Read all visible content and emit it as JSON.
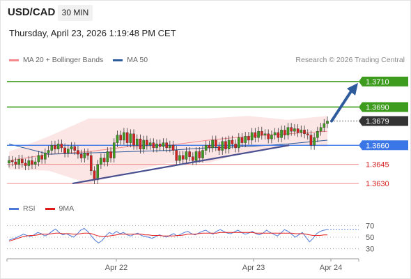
{
  "header": {
    "symbol": "USD/CAD",
    "timeframe": "30 MIN",
    "datetime": "Thursday, April 23, 2026 1:19:48 PM CET"
  },
  "legend_main": {
    "items": [
      {
        "label": "MA 20 + Bollinger Bands",
        "color": "#f4888a"
      },
      {
        "label": "MA 50",
        "color": "#2e5b9c"
      }
    ],
    "credit": "Research © 2026 Trading Central"
  },
  "legend_rsi": {
    "items": [
      {
        "label": "RSI",
        "color": "#4d79d6"
      },
      {
        "label": "9MA",
        "color": "#e11a1a"
      }
    ]
  },
  "colors": {
    "resistance": "#3d9c1e",
    "pivot": "#3b76e6",
    "support": "#f08a8a",
    "support_text": "#d62020",
    "last_price": "#333333",
    "arrow": "#2e5b9c",
    "trendline": "#4a4f8f",
    "bull": "#3d9c1e",
    "bear": "#d62020"
  },
  "chart_data": {
    "type": "candlestick",
    "x_labels": [
      "Apr 22",
      "Apr 23",
      "Apr 24"
    ],
    "ylim": [
      1.3618,
      1.3722
    ],
    "levels": [
      {
        "value": 1.371,
        "label": "1.3710",
        "kind": "resistance"
      },
      {
        "value": 1.369,
        "label": "1.3690",
        "kind": "resistance"
      },
      {
        "value": 1.3679,
        "label": "1.3679",
        "kind": "last"
      },
      {
        "value": 1.366,
        "label": "1.3660",
        "kind": "pivot"
      },
      {
        "value": 1.3645,
        "label": "1.3645",
        "kind": "support"
      },
      {
        "value": 1.363,
        "label": "1.3630",
        "kind": "support"
      }
    ],
    "candles_close": [
      1.3648,
      1.3647,
      1.3645,
      1.3649,
      1.3646,
      1.3644,
      1.3648,
      1.3645,
      1.3647,
      1.3652,
      1.3649,
      1.3654,
      1.3656,
      1.366,
      1.3657,
      1.3661,
      1.3658,
      1.3654,
      1.3657,
      1.3659,
      1.3656,
      1.3653,
      1.365,
      1.3654,
      1.3652,
      1.364,
      1.3633,
      1.3645,
      1.365,
      1.3647,
      1.3655,
      1.365,
      1.3662,
      1.3668,
      1.3664,
      1.367,
      1.3662,
      1.3669,
      1.366,
      1.3665,
      1.3657,
      1.3664,
      1.366,
      1.3662,
      1.3658,
      1.3661,
      1.3659,
      1.3662,
      1.3658,
      1.366,
      1.3656,
      1.3648,
      1.3652,
      1.3649,
      1.3655,
      1.3651,
      1.3648,
      1.3655,
      1.365,
      1.3656,
      1.366,
      1.3658,
      1.3664,
      1.3659,
      1.3656,
      1.3663,
      1.3657,
      1.3664,
      1.3661,
      1.3658,
      1.3666,
      1.3662,
      1.3667,
      1.3664,
      1.367,
      1.3666,
      1.3671,
      1.3668,
      1.3669,
      1.3665,
      1.3668,
      1.367,
      1.3666,
      1.3672,
      1.3668,
      1.3674,
      1.3671,
      1.3673,
      1.367,
      1.3672,
      1.3669,
      1.3668,
      1.366,
      1.3666,
      1.3671,
      1.3674,
      1.3677,
      1.3679
    ],
    "ma20_upper": [
      1.3655,
      1.3667,
      1.3681,
      1.3681,
      1.3681,
      1.3681,
      1.3683,
      1.368,
      1.3683
    ],
    "ma20_lower": [
      1.3641,
      1.364,
      1.363,
      1.3639,
      1.3646,
      1.3646,
      1.3655,
      1.366,
      1.3659
    ],
    "ma20": [
      1.3648,
      1.3653,
      1.3655,
      1.3659,
      1.366,
      1.3664,
      1.3667,
      1.3669,
      1.3671
    ],
    "ma50": [
      1.3661,
      1.3653,
      1.3654,
      1.3655,
      1.3656,
      1.3658,
      1.3659,
      1.3661,
      1.3664
    ],
    "trendline": [
      [
        1.363,
        0
      ],
      [
        1.366,
        0.88
      ]
    ],
    "arrow_target": 1.371,
    "rsi": {
      "ylim": [
        20,
        80
      ],
      "levels": [
        70,
        50,
        30
      ],
      "values": [
        45,
        47,
        49,
        52,
        55,
        53,
        51,
        54,
        58,
        56,
        52,
        55,
        60,
        64,
        58,
        54,
        56,
        53,
        50,
        55,
        62,
        65,
        60,
        52,
        45,
        40,
        44,
        52,
        58,
        55,
        60,
        56,
        58,
        54,
        52,
        55,
        57,
        53,
        51,
        50,
        48,
        51,
        54,
        52,
        50,
        53,
        56,
        52,
        55,
        58,
        60,
        56,
        54,
        57,
        60,
        62,
        58,
        55,
        60,
        63,
        60,
        57,
        56,
        59,
        62,
        58,
        55,
        57,
        60,
        56,
        54,
        57,
        62,
        58,
        55,
        52,
        57,
        63,
        60,
        55,
        50,
        54,
        58,
        50,
        42,
        48,
        56,
        60,
        62,
        63
      ],
      "ma9": [
        43,
        45,
        47,
        49,
        51,
        52,
        53,
        53,
        54,
        55,
        55,
        55,
        56,
        57,
        57,
        56,
        56,
        56,
        55,
        55,
        56,
        57,
        57,
        56,
        54,
        52,
        51,
        51,
        52,
        53,
        54,
        55,
        55,
        55,
        55,
        55,
        55,
        55,
        54,
        54,
        53,
        53,
        53,
        52,
        52,
        52,
        52,
        53,
        53,
        54,
        55,
        55,
        55,
        56,
        57,
        57,
        57,
        57,
        57,
        58,
        58,
        58,
        58,
        58,
        58,
        58,
        58,
        58,
        58,
        57,
        57,
        57,
        57,
        57,
        57,
        57,
        57,
        57,
        57,
        57,
        56,
        56,
        56,
        55,
        54,
        53,
        53,
        53,
        54,
        54
      ]
    }
  }
}
